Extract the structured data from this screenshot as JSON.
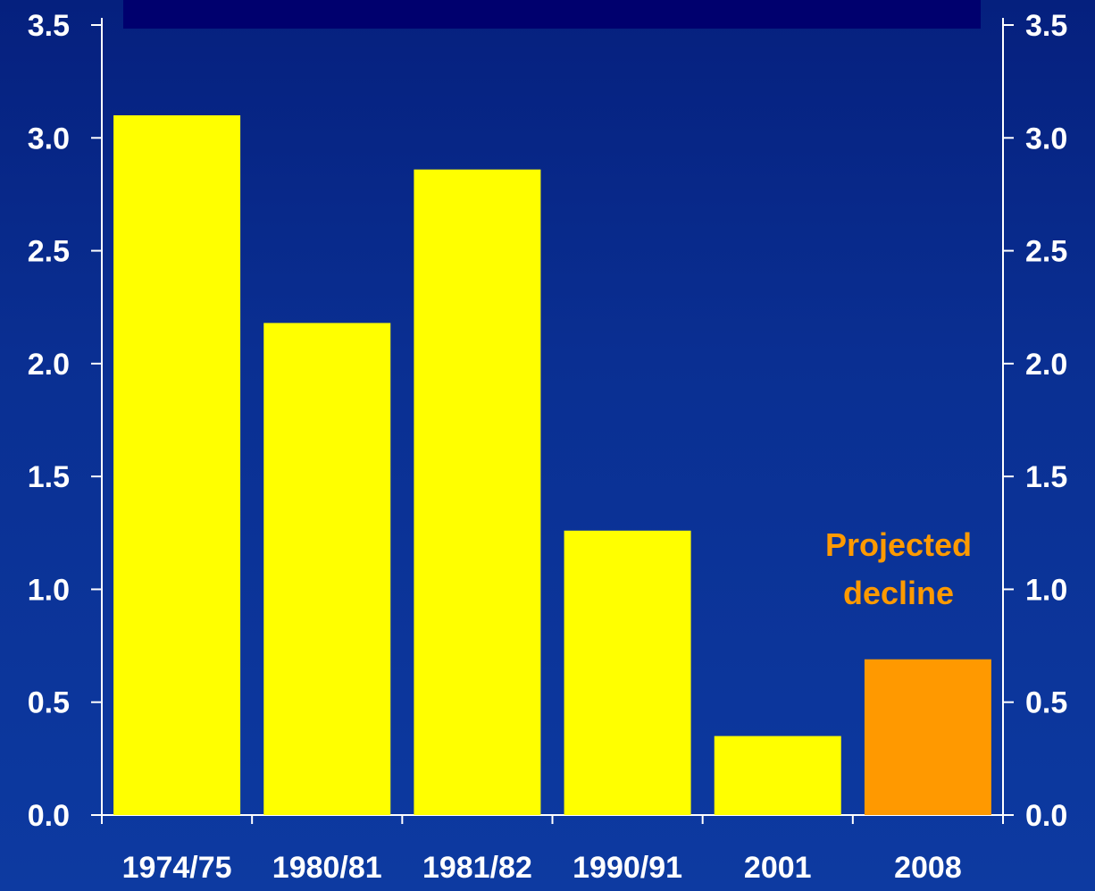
{
  "colors": {
    "bar": "#ffff00",
    "bar_projected": "#ff9900",
    "axis": "#ffffff",
    "annotation": "#ff9a00"
  },
  "chart_data": {
    "type": "bar",
    "title": "",
    "xlabel": "",
    "ylabel": "",
    "ylim": [
      0,
      3.5
    ],
    "yticks": [
      "0.0",
      "0.5",
      "1.0",
      "1.5",
      "2.0",
      "2.5",
      "3.0",
      "3.5"
    ],
    "right_axis_ticks": [
      "0.0",
      "0.5",
      "1.0",
      "1.5",
      "2.0",
      "2.5",
      "3.0",
      "3.5"
    ],
    "categories": [
      "1974/75",
      "1980/81",
      "1981/82",
      "1990/91",
      "2001",
      "2008"
    ],
    "values": [
      3.1,
      2.18,
      2.86,
      1.26,
      0.35,
      0.69
    ],
    "projected": [
      false,
      false,
      false,
      false,
      false,
      true
    ],
    "annotation": {
      "lines": [
        "Projected",
        "decline"
      ],
      "category": "2008"
    },
    "grid": false,
    "legend": "none"
  }
}
